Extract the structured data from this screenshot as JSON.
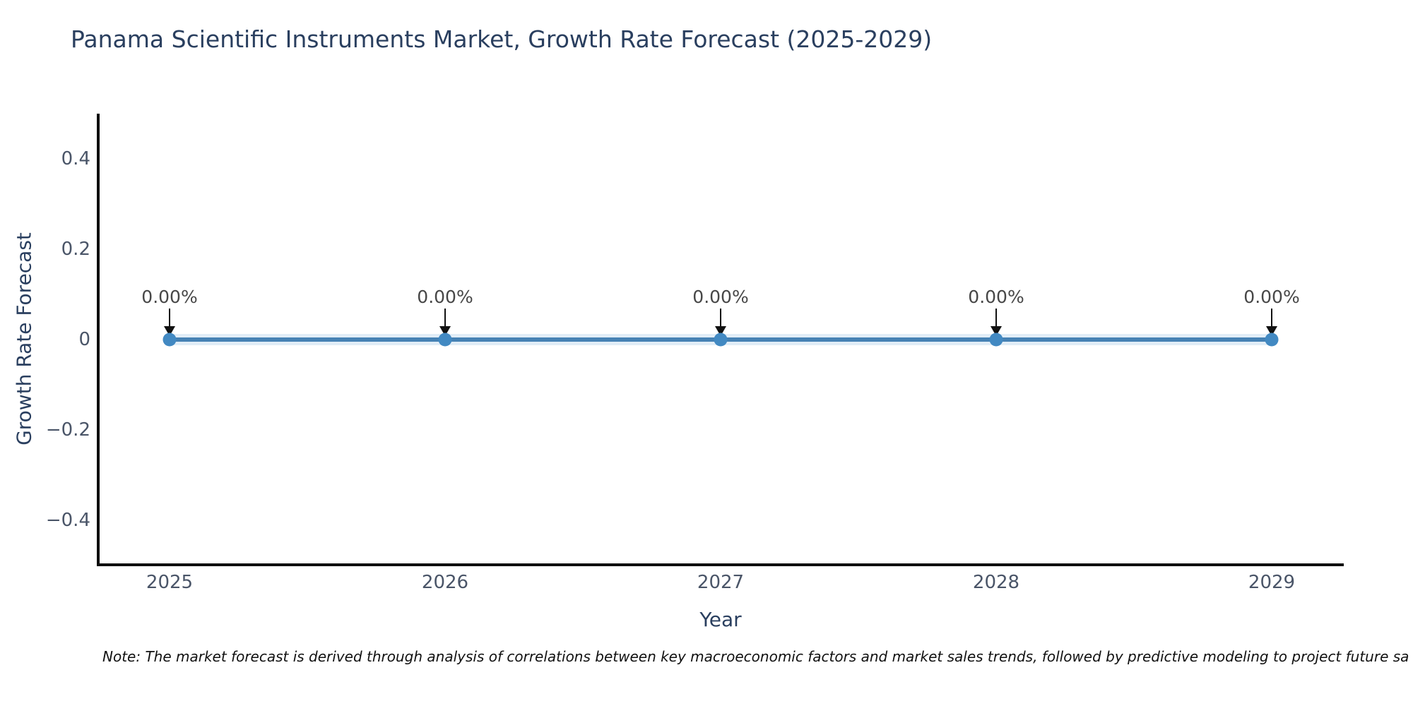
{
  "page": {
    "note": "Note: The market forecast is derived through analysis of correlations between key macroeconomic factors and market sales trends, followed by predictive modeling to project future sa"
  },
  "chart_data": {
    "type": "line",
    "title": "Panama Scientific Instruments Market, Growth Rate Forecast (2025-2029)",
    "xlabel": "Year",
    "ylabel": "Growth Rate Forecast",
    "categories": [
      "2025",
      "2026",
      "2027",
      "2028",
      "2029"
    ],
    "values": [
      0,
      0,
      0,
      0,
      0
    ],
    "point_labels": [
      "0.00%",
      "0.00%",
      "0.00%",
      "0.00%",
      "0.00%"
    ],
    "ylim": [
      -0.5,
      0.5
    ],
    "yticks": [
      0.4,
      0.2,
      0,
      -0.2,
      -0.4
    ],
    "ytick_labels": [
      "0.4",
      "0.2",
      "0",
      "−0.2",
      "−0.4"
    ],
    "grid": false,
    "legend": false,
    "annotations_style": "down-arrow-to-point",
    "colors": {
      "line": "#4682b4",
      "marker": "#4289c2",
      "halo": "#a9cbe8",
      "arrow": "#111111",
      "title": "#2a3f5f",
      "axis_title": "#2a3f5f",
      "tick": "#4a5568",
      "axis_line": "#0d0d0d",
      "annotation_text": "#474747",
      "background": "#ffffff"
    }
  }
}
